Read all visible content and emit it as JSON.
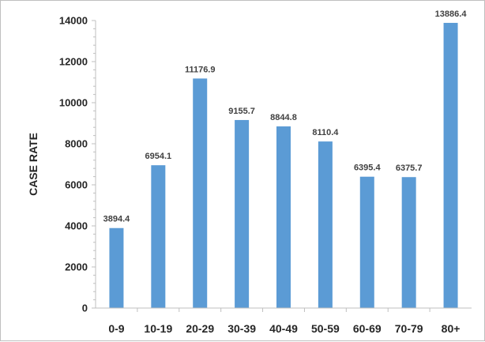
{
  "chart_data": {
    "type": "bar",
    "title": "",
    "xlabel": "",
    "ylabel": "CASE RATE",
    "categories": [
      "0-9",
      "10-19",
      "20-29",
      "30-39",
      "40-49",
      "50-59",
      "60-69",
      "70-79",
      "80+"
    ],
    "values": [
      3894.4,
      6954.1,
      11176.9,
      9155.7,
      8844.8,
      8110.4,
      6395.4,
      6375.7,
      13886.4
    ],
    "data_labels": [
      "3894.4",
      "6954.1",
      "11176.9",
      "9155.7",
      "8844.8",
      "8110.4",
      "6395.4",
      "6375.7",
      "13886.4"
    ],
    "ylim": [
      0,
      14000
    ],
    "yticks": [
      0,
      2000,
      4000,
      6000,
      8000,
      10000,
      12000,
      14000
    ],
    "ytick_labels": [
      "0",
      "2000",
      "4000",
      "6000",
      "8000",
      "10000",
      "12000",
      "14000"
    ],
    "grid": false,
    "legend": "none",
    "bar_color": "#5b9bd5",
    "axis_color": "#bfbfbf"
  }
}
